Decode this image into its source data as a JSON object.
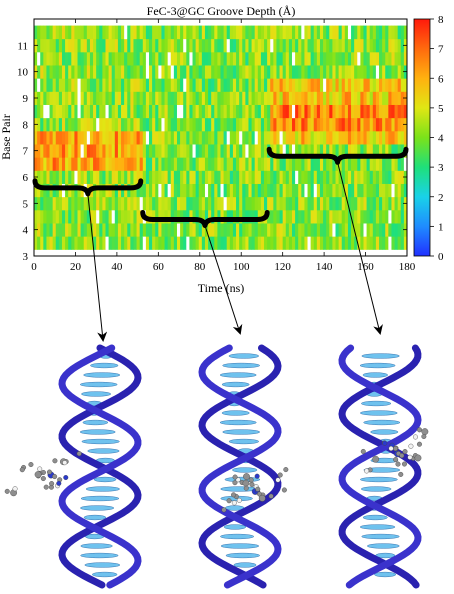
{
  "chart_data": {
    "type": "heatmap",
    "title": "FeC-3@GC Groove Depth (Å)",
    "xlabel": "Time (ns)",
    "ylabel": "Base Pair",
    "xlim": [
      0,
      180
    ],
    "ylim": [
      3,
      12
    ],
    "x_ticks": [
      "0",
      "20",
      "40",
      "60",
      "80",
      "100",
      "120",
      "140",
      "160",
      "180"
    ],
    "y_ticks": [
      "3",
      "4",
      "5",
      "6",
      "7",
      "8",
      "9",
      "10",
      "11"
    ],
    "colorbar": {
      "min": 0,
      "max": 8,
      "ticks": [
        "0",
        "1",
        "2",
        "3",
        "4",
        "5",
        "6",
        "7",
        "8"
      ],
      "colors": [
        "#2030ff",
        "#1f8cff",
        "#19d2e8",
        "#1fe07a",
        "#7be21a",
        "#e0e614",
        "#ffb10f",
        "#ff6a0e",
        "#ff1a0c"
      ]
    },
    "base_pairs": [
      3.5,
      4,
      4.5,
      5,
      5.5,
      6,
      6.5,
      7,
      7.5,
      8,
      8.5,
      9,
      9.5,
      10,
      10.5,
      11,
      11.5
    ],
    "segments": [
      {
        "time_range": [
          0,
          52
        ],
        "bracket_base_pair": 5.7,
        "base_level": 4.2,
        "elevated_base_pairs": [
          {
            "range": [
              6.5,
              7.5
            ],
            "value": 6.2
          }
        ]
      },
      {
        "time_range": [
          52,
          113
        ],
        "bracket_base_pair": 4.5,
        "base_level": 4.0,
        "elevated_base_pairs": []
      },
      {
        "time_range": [
          113,
          180
        ],
        "bracket_base_pair": 6.9,
        "base_level": 4.1,
        "elevated_base_pairs": [
          {
            "range": [
              7.5,
              9.5
            ],
            "value": 5.6
          },
          {
            "range": [
              8,
              8.5
            ],
            "value": 6.6
          }
        ]
      }
    ]
  },
  "structures": [
    {
      "name": "dna-structure-1",
      "helix_color": "#2a22b0",
      "base_color": "#6fc2ee"
    },
    {
      "name": "dna-structure-2",
      "helix_color": "#2a22b0",
      "base_color": "#6fc2ee"
    },
    {
      "name": "dna-structure-3",
      "helix_color": "#2a22b0",
      "base_color": "#6fc2ee"
    }
  ]
}
